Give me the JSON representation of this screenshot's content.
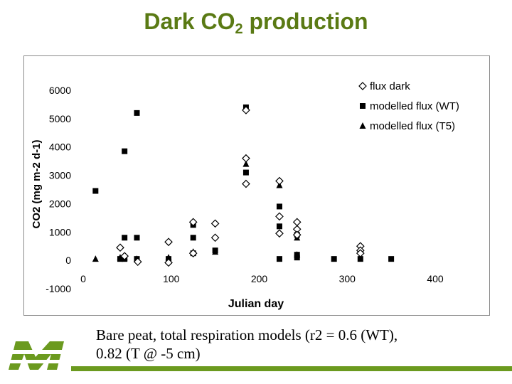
{
  "slide": {
    "title_main": "Dark CO",
    "title_sub": "2",
    "title_rest": " production",
    "caption_line1": "Bare peat, total respiration models (r2 = 0.6 (WT),",
    "caption_line2": "0.82 (T @ -5 cm)",
    "accent_color": "#6b9a1f",
    "title_color": "#5a7a14"
  },
  "chart_data": {
    "type": "scatter",
    "xlabel": "Julian day",
    "ylabel": "CO2 (mg m-2 d-1)",
    "xlim": [
      0,
      400
    ],
    "ylim": [
      -1000,
      6000
    ],
    "xticks": [
      0,
      100,
      200,
      300,
      400
    ],
    "yticks": [
      -1000,
      0,
      1000,
      2000,
      3000,
      4000,
      5000,
      6000
    ],
    "grid": false,
    "legend_position": "top-right",
    "series": [
      {
        "name": "flux dark",
        "marker": "open-diamond",
        "color": "#000000",
        "points": [
          [
            42,
            450
          ],
          [
            47,
            150
          ],
          [
            62,
            -50
          ],
          [
            97,
            -80
          ],
          [
            97,
            650
          ],
          [
            125,
            1350
          ],
          [
            125,
            250
          ],
          [
            150,
            1300
          ],
          [
            150,
            800
          ],
          [
            185,
            3600
          ],
          [
            185,
            2700
          ],
          [
            185,
            5300
          ],
          [
            223,
            2800
          ],
          [
            223,
            1550
          ],
          [
            223,
            950
          ],
          [
            243,
            1350
          ],
          [
            243,
            1100
          ],
          [
            243,
            900
          ],
          [
            315,
            500
          ],
          [
            315,
            350
          ],
          [
            315,
            250
          ]
        ]
      },
      {
        "name": "modelled flux (WT)",
        "marker": "filled-square",
        "color": "#000000",
        "points": [
          [
            14,
            2450
          ],
          [
            42,
            50
          ],
          [
            47,
            3850
          ],
          [
            47,
            800
          ],
          [
            47,
            50
          ],
          [
            61,
            5200
          ],
          [
            61,
            800
          ],
          [
            61,
            50
          ],
          [
            97,
            50
          ],
          [
            125,
            1250
          ],
          [
            125,
            800
          ],
          [
            125,
            250
          ],
          [
            150,
            350
          ],
          [
            185,
            5400
          ],
          [
            185,
            3100
          ],
          [
            223,
            1900
          ],
          [
            223,
            1200
          ],
          [
            223,
            50
          ],
          [
            243,
            900
          ],
          [
            243,
            200
          ],
          [
            243,
            100
          ],
          [
            285,
            50
          ],
          [
            315,
            50
          ],
          [
            350,
            50
          ]
        ]
      },
      {
        "name": "modelled flux (T5)",
        "marker": "filled-triangle",
        "color": "#000000",
        "points": [
          [
            14,
            50
          ],
          [
            42,
            100
          ],
          [
            47,
            100
          ],
          [
            61,
            50
          ],
          [
            97,
            100
          ],
          [
            125,
            300
          ],
          [
            150,
            300
          ],
          [
            185,
            3400
          ],
          [
            223,
            2650
          ],
          [
            243,
            800
          ],
          [
            243,
            200
          ]
        ]
      }
    ]
  }
}
